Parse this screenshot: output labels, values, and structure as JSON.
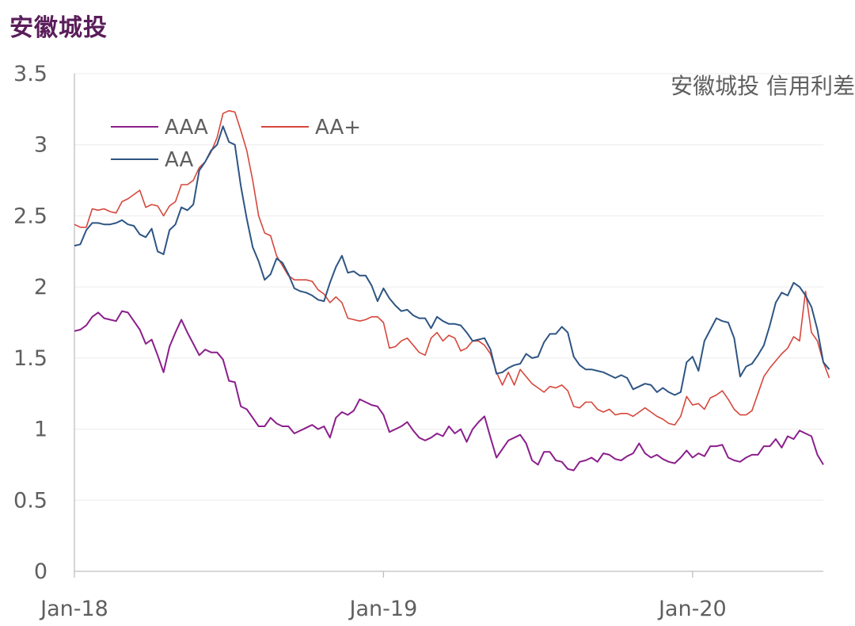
{
  "header": {
    "title": "安徽城投"
  },
  "chart_data": {
    "type": "line",
    "title": "安徽城投 信用利差",
    "xlabel": "",
    "ylabel": "",
    "ylim": [
      0,
      3.5
    ],
    "yticks": [
      "0",
      "0.5",
      "1",
      "1.5",
      "2",
      "2.5",
      "3",
      "3.5"
    ],
    "xticks": [
      "Jan-18",
      "Jan-19",
      "Jan-20"
    ],
    "x_period": "weekly, Jan 2018 – Apr 2020",
    "grid": "horizontal",
    "legend": "top-left",
    "series": [
      {
        "name": "AAA",
        "color": "#8b1f8b",
        "values": [
          1.69,
          1.7,
          1.73,
          1.79,
          1.82,
          1.78,
          1.77,
          1.76,
          1.83,
          1.82,
          1.76,
          1.7,
          1.6,
          1.63,
          1.52,
          1.4,
          1.58,
          1.68,
          1.77,
          1.68,
          1.6,
          1.52,
          1.56,
          1.54,
          1.54,
          1.49,
          1.34,
          1.33,
          1.16,
          1.14,
          1.08,
          1.02,
          1.02,
          1.08,
          1.04,
          1.02,
          1.02,
          0.97,
          0.99,
          1.01,
          1.03,
          1.0,
          1.02,
          0.94,
          1.08,
          1.12,
          1.1,
          1.13,
          1.21,
          1.19,
          1.17,
          1.16,
          1.1,
          0.98,
          1.0,
          1.02,
          1.05,
          0.99,
          0.94,
          0.92,
          0.94,
          0.97,
          0.95,
          1.02,
          0.97,
          1.0,
          0.91,
          1.0,
          1.05,
          1.09,
          0.94,
          0.8,
          0.86,
          0.92,
          0.94,
          0.96,
          0.9,
          0.78,
          0.75,
          0.84,
          0.84,
          0.78,
          0.77,
          0.72,
          0.71,
          0.77,
          0.78,
          0.8,
          0.77,
          0.83,
          0.82,
          0.79,
          0.78,
          0.81,
          0.83,
          0.9,
          0.83,
          0.8,
          0.82,
          0.79,
          0.77,
          0.76,
          0.8,
          0.85,
          0.8,
          0.83,
          0.81,
          0.88,
          0.88,
          0.89,
          0.8,
          0.78,
          0.77,
          0.8,
          0.82,
          0.82,
          0.88,
          0.88,
          0.93,
          0.87,
          0.95,
          0.93,
          0.99,
          0.97,
          0.95,
          0.82,
          0.75
        ]
      },
      {
        "name": "AA+",
        "color": "#d6473c",
        "values": [
          2.44,
          2.42,
          2.42,
          2.55,
          2.54,
          2.55,
          2.53,
          2.52,
          2.6,
          2.62,
          2.65,
          2.68,
          2.56,
          2.58,
          2.57,
          2.5,
          2.57,
          2.6,
          2.72,
          2.72,
          2.75,
          2.84,
          2.88,
          2.95,
          3.05,
          3.22,
          3.24,
          3.23,
          3.1,
          2.96,
          2.75,
          2.5,
          2.38,
          2.36,
          2.22,
          2.15,
          2.08,
          2.05,
          2.05,
          2.05,
          2.04,
          1.98,
          1.95,
          1.89,
          1.93,
          1.89,
          1.78,
          1.77,
          1.76,
          1.77,
          1.79,
          1.79,
          1.75,
          1.57,
          1.58,
          1.62,
          1.64,
          1.59,
          1.54,
          1.52,
          1.64,
          1.68,
          1.62,
          1.66,
          1.64,
          1.55,
          1.57,
          1.62,
          1.62,
          1.59,
          1.53,
          1.4,
          1.31,
          1.4,
          1.31,
          1.42,
          1.37,
          1.32,
          1.29,
          1.26,
          1.3,
          1.29,
          1.31,
          1.27,
          1.16,
          1.15,
          1.19,
          1.19,
          1.14,
          1.12,
          1.14,
          1.1,
          1.11,
          1.11,
          1.09,
          1.12,
          1.15,
          1.12,
          1.09,
          1.07,
          1.04,
          1.03,
          1.09,
          1.23,
          1.17,
          1.18,
          1.14,
          1.22,
          1.24,
          1.27,
          1.21,
          1.14,
          1.1,
          1.1,
          1.13,
          1.25,
          1.37,
          1.43,
          1.48,
          1.53,
          1.57,
          1.65,
          1.62,
          1.97,
          1.68,
          1.62,
          1.47,
          1.36
        ]
      },
      {
        "name": "AA",
        "color": "#2e5583",
        "values": [
          2.29,
          2.3,
          2.4,
          2.45,
          2.45,
          2.44,
          2.44,
          2.45,
          2.47,
          2.44,
          2.43,
          2.37,
          2.35,
          2.41,
          2.25,
          2.23,
          2.4,
          2.44,
          2.56,
          2.54,
          2.58,
          2.82,
          2.88,
          2.96,
          3.0,
          3.13,
          3.02,
          3.0,
          2.71,
          2.48,
          2.28,
          2.18,
          2.05,
          2.09,
          2.2,
          2.17,
          2.09,
          1.99,
          1.97,
          1.96,
          1.94,
          1.91,
          1.9,
          2.03,
          2.14,
          2.22,
          2.1,
          2.11,
          2.08,
          2.08,
          2.01,
          1.9,
          1.99,
          1.92,
          1.87,
          1.83,
          1.84,
          1.8,
          1.78,
          1.78,
          1.71,
          1.79,
          1.76,
          1.74,
          1.74,
          1.73,
          1.68,
          1.62,
          1.63,
          1.64,
          1.56,
          1.39,
          1.4,
          1.43,
          1.45,
          1.46,
          1.53,
          1.5,
          1.51,
          1.61,
          1.67,
          1.67,
          1.72,
          1.68,
          1.51,
          1.45,
          1.42,
          1.42,
          1.41,
          1.4,
          1.38,
          1.36,
          1.38,
          1.36,
          1.28,
          1.3,
          1.32,
          1.31,
          1.26,
          1.29,
          1.26,
          1.24,
          1.26,
          1.47,
          1.51,
          1.41,
          1.62,
          1.7,
          1.78,
          1.76,
          1.75,
          1.64,
          1.37,
          1.44,
          1.46,
          1.52,
          1.59,
          1.73,
          1.89,
          1.96,
          1.94,
          2.03,
          2.0,
          1.94,
          1.86,
          1.7,
          1.47,
          1.42
        ]
      }
    ]
  }
}
